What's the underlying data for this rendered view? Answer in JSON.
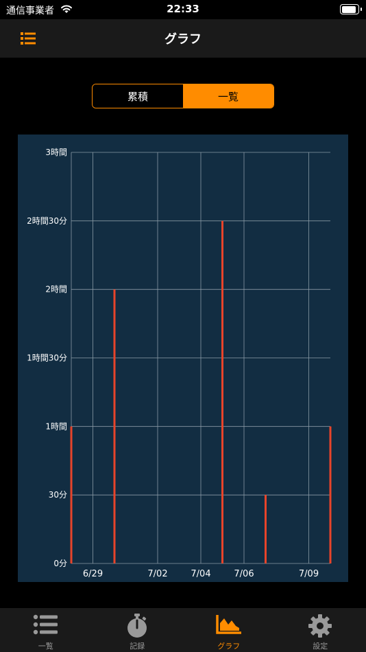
{
  "status_bar": {
    "carrier": "通信事業者",
    "time": "22:33",
    "battery_level": 1.0
  },
  "nav": {
    "title": "グラフ",
    "menu_icon": "list-icon"
  },
  "segmented": {
    "left_label": "累積",
    "right_label": "一覧",
    "selected": "一覧"
  },
  "colors": {
    "accent": "#ff8c00",
    "bar": "#e8442a",
    "chart_bg": "#122d42",
    "grid": "#8a9aa6"
  },
  "chart_data": {
    "type": "bar",
    "y_ticks": [
      "0分",
      "30分",
      "1時間",
      "1時間30分",
      "2時間",
      "2時間30分",
      "3時間"
    ],
    "ylim_minutes": [
      0,
      180
    ],
    "xlim": [
      "2020-06-28",
      "2020-07-10"
    ],
    "x_ticks": [
      {
        "date": "2020-06-29",
        "label": "6/29"
      },
      {
        "date": "2020-07-02",
        "label": "7/02"
      },
      {
        "date": "2020-07-04",
        "label": "7/04"
      },
      {
        "date": "2020-07-06",
        "label": "7/06"
      },
      {
        "date": "2020-07-09",
        "label": "7/09"
      }
    ],
    "series": [
      {
        "points": [
          {
            "date": "2020-06-28",
            "minutes": 60
          },
          {
            "date": "2020-06-30",
            "minutes": 120
          },
          {
            "date": "2020-07-05",
            "minutes": 150
          },
          {
            "date": "2020-07-07",
            "minutes": 30
          },
          {
            "date": "2020-07-10",
            "minutes": 60
          }
        ]
      }
    ],
    "grid": true
  },
  "tabs": [
    {
      "label": "一覧",
      "icon": "list-icon",
      "active": false
    },
    {
      "label": "記録",
      "icon": "stopwatch-icon",
      "active": false
    },
    {
      "label": "グラフ",
      "icon": "area-chart-icon",
      "active": true
    },
    {
      "label": "設定",
      "icon": "gear-icon",
      "active": false
    }
  ]
}
